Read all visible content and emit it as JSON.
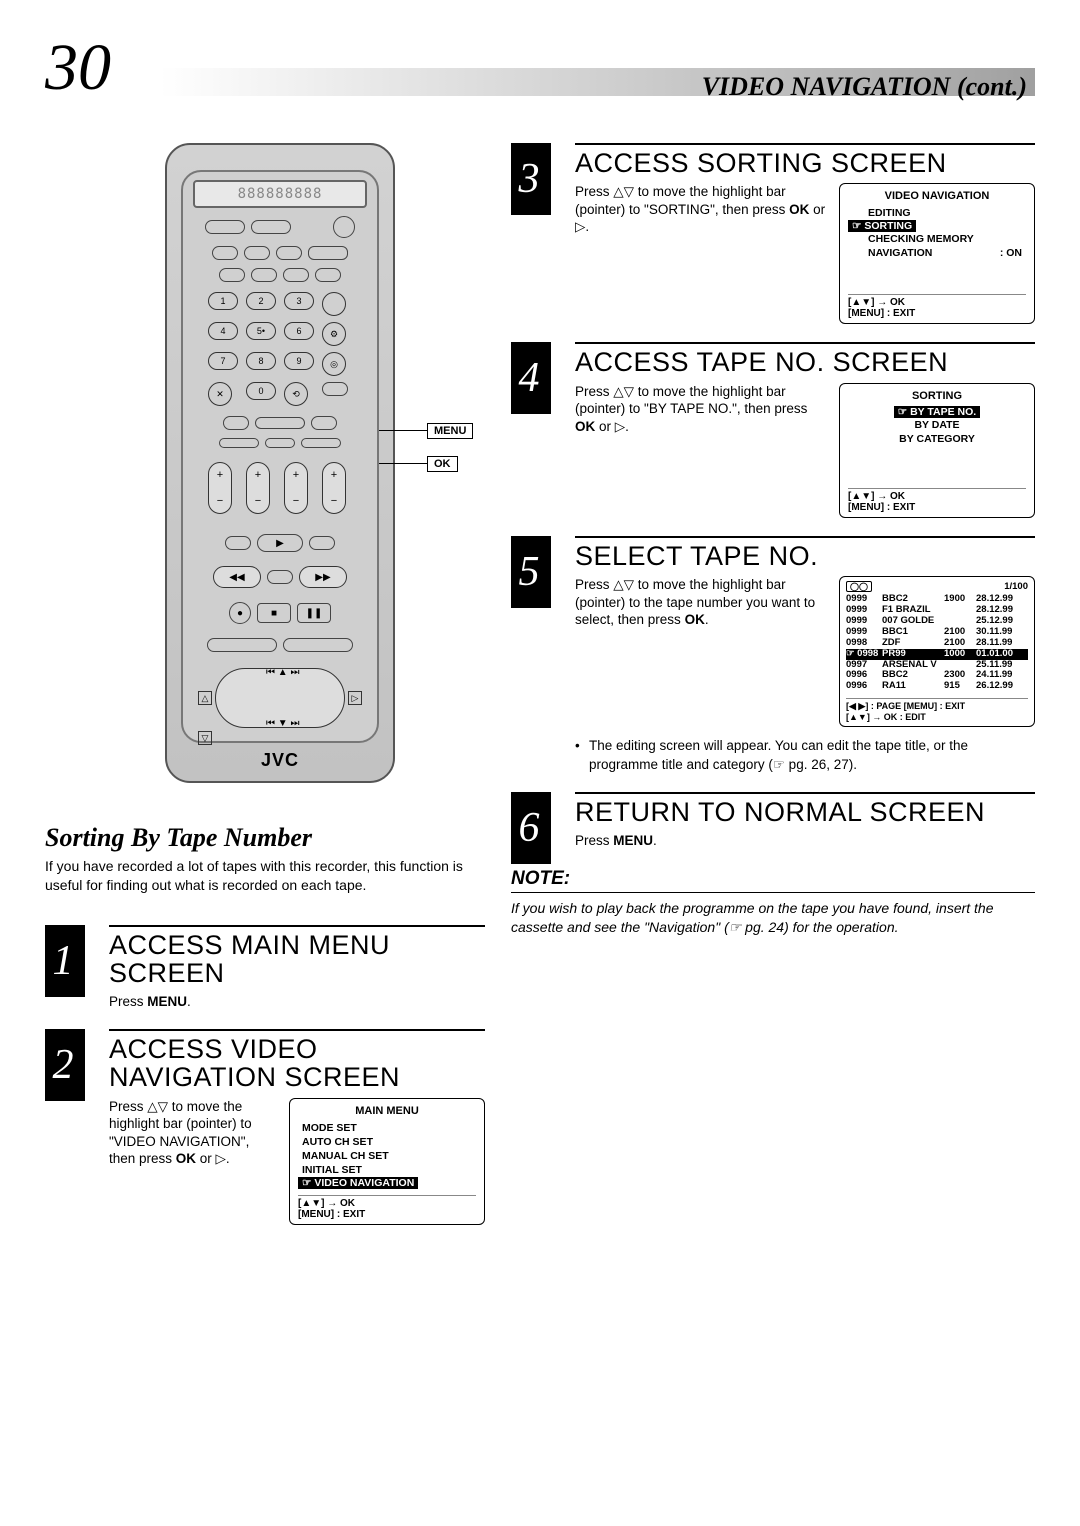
{
  "page_number": "30",
  "header_title": "VIDEO NAVIGATION (cont.)",
  "remote": {
    "lcd": "888888888",
    "logo": "JVC",
    "callout_menu": "MENU",
    "callout_ok": "OK"
  },
  "left": {
    "subheading": "Sorting By Tape Number",
    "intro": "If you have recorded a lot of tapes with this recorder, this function is useful for finding out what is recorded on each tape.",
    "step1": {
      "num": "1",
      "title": "ACCESS MAIN MENU SCREEN",
      "body": "Press ",
      "body_b": "MENU",
      "body_after": "."
    },
    "step2": {
      "num": "2",
      "title": "ACCESS VIDEO NAVIGATION SCREEN",
      "body1": "Press △▽ to move the highlight bar (pointer) to \"VIDEO NAVIGATION\", then press ",
      "body_b": "OK",
      "body2": " or ▷.",
      "osd": {
        "title": "MAIN MENU",
        "items": [
          "MODE SET",
          "AUTO CH SET",
          "MANUAL CH SET",
          "INITIAL SET"
        ],
        "hl": "☞ VIDEO NAVIGATION",
        "footer1": "[▲▼] → OK",
        "footer2": "[MENU] : EXIT"
      }
    }
  },
  "right": {
    "step3": {
      "num": "3",
      "title": "ACCESS SORTING SCREEN",
      "body1": "Press △▽ to move the highlight bar (pointer) to \"SORTING\", then press ",
      "body_b": "OK",
      "body2": " or ▷.",
      "osd": {
        "title": "VIDEO NAVIGATION",
        "pre": "EDITING",
        "hl": "☞ SORTING",
        "post1": "CHECKING MEMORY",
        "post2_l": "NAVIGATION",
        "post2_r": ": ON",
        "footer1": "[▲▼] → OK",
        "footer2": "[MENU] : EXIT"
      }
    },
    "step4": {
      "num": "4",
      "title": "ACCESS TAPE NO. SCREEN",
      "body1": "Press △▽ to move the highlight bar (pointer) to \"BY TAPE NO.\", then press ",
      "body_b": "OK",
      "body2": " or ▷.",
      "osd": {
        "title": "SORTING",
        "hl": "☞ BY TAPE NO.",
        "post1": "BY DATE",
        "post2": "BY CATEGORY",
        "footer1": "[▲▼] → OK",
        "footer2": "[MENU] : EXIT"
      }
    },
    "step5": {
      "num": "5",
      "title": "SELECT TAPE NO.",
      "body1": "Press △▽ to move the highlight bar (pointer) to the tape number you want to select, then press ",
      "body_b": "OK",
      "body2": ".",
      "osd": {
        "head_icon": "◯◯",
        "head_right": "1/100",
        "rows": [
          [
            "0999",
            "BBC2",
            "1900",
            "28.12.99"
          ],
          [
            "0999",
            "F1  BRAZIL",
            "",
            "28.12.99"
          ],
          [
            "0999",
            "007 GOLDE",
            "",
            "25.12.99"
          ],
          [
            "0999",
            "BBC1",
            "2100",
            "30.11.99"
          ],
          [
            "0998",
            "ZDF",
            "2100",
            "28.11.99"
          ]
        ],
        "hl_row": [
          "☞ 0998",
          "PR99",
          "1000",
          "01.01.00"
        ],
        "rows2": [
          [
            "0997",
            "ARSENAL V",
            "",
            "25.11.99"
          ],
          [
            "0996",
            "BBC2",
            "2300",
            "24.11.99"
          ],
          [
            "0996",
            "RA11",
            "915",
            "26.12.99"
          ]
        ],
        "footer1": "[◀ ▶] : PAGE            [MEMU] : EXIT",
        "footer2": "[▲▼] → OK  : EDIT"
      },
      "note": "The editing screen will appear. You can edit the tape title, or the programme title and category (☞ pg. 26, 27)."
    },
    "step6": {
      "num": "6",
      "title": "RETURN TO NORMAL SCREEN",
      "body": "Press ",
      "body_b": "MENU",
      "body2": "."
    },
    "note": {
      "label": "NOTE:",
      "body": "If you wish to play back the programme on the tape you have found, insert the cassette and see the \"Navigation\" (☞ pg. 24) for the operation."
    }
  }
}
